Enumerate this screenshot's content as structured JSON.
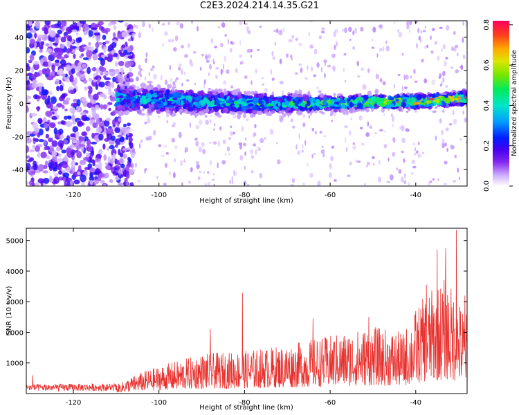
{
  "title": "C2E3.2024.214.14.35.G21",
  "chart_data": [
    {
      "type": "heatmap",
      "title": "C2E3.2024.214.14.35.G21",
      "xlabel": "Height of straight line (km)",
      "ylabel": "Frequency (Hz)",
      "xlim": [
        -131,
        -28
      ],
      "ylim": [
        -50,
        50
      ],
      "x_ticks": [
        "-120",
        "-100",
        "-80",
        "-60",
        "-40"
      ],
      "y_ticks": [
        "-40",
        "-20",
        "0",
        "20",
        "40"
      ],
      "colorbar": {
        "label": "Normalized spectral amplitude",
        "range": [
          0,
          0.82
        ],
        "ticks": [
          "0.0",
          "0.2",
          "0.4",
          "0.6",
          "0.8"
        ],
        "colormap": "rainbow"
      },
      "description_values": {
        "signal_band_frequency_hz": [
          {
            "x": -108,
            "y": 3
          },
          {
            "x": -100,
            "y": 2
          },
          {
            "x": -90,
            "y": 1
          },
          {
            "x": -80,
            "y": 0
          },
          {
            "x": -70,
            "y": 0
          },
          {
            "x": -60,
            "y": 0
          },
          {
            "x": -50,
            "y": 1
          },
          {
            "x": -40,
            "y": 1
          },
          {
            "x": -30,
            "y": 3
          }
        ],
        "band_halfwidth_hz": [
          {
            "x": -108,
            "y": 8
          },
          {
            "x": -90,
            "y": 7
          },
          {
            "x": -70,
            "y": 5
          },
          {
            "x": -50,
            "y": 4
          },
          {
            "x": -30,
            "y": 4
          }
        ],
        "peak_amplitude": [
          {
            "x": -108,
            "y": 0.45
          },
          {
            "x": -90,
            "y": 0.45
          },
          {
            "x": -75,
            "y": 0.55
          },
          {
            "x": -60,
            "y": 0.6
          },
          {
            "x": -50,
            "y": 0.78
          },
          {
            "x": -40,
            "y": 0.8
          },
          {
            "x": -30,
            "y": 0.82
          }
        ],
        "noise_region_x": [
          -131,
          -108
        ]
      },
      "grid": false
    },
    {
      "type": "line",
      "xlabel": "Height of straight line (km)",
      "ylabel": "SNR (10 * v/v)",
      "xlim": [
        -131,
        -28
      ],
      "ylim": [
        0,
        5400
      ],
      "x_ticks": [
        "-120",
        "-100",
        "-80",
        "-60",
        "-40"
      ],
      "y_ticks": [
        "1000",
        "2000",
        "3000",
        "4000",
        "5000"
      ],
      "color": "#e8322f",
      "envelope": [
        {
          "x": -131,
          "y": 250
        },
        {
          "x": -110,
          "y": 280
        },
        {
          "x": -105,
          "y": 650
        },
        {
          "x": -100,
          "y": 900
        },
        {
          "x": -90,
          "y": 1300
        },
        {
          "x": -80,
          "y": 1400
        },
        {
          "x": -70,
          "y": 1600
        },
        {
          "x": -60,
          "y": 1900
        },
        {
          "x": -50,
          "y": 2200
        },
        {
          "x": -43,
          "y": 2000
        },
        {
          "x": -38,
          "y": 3200
        },
        {
          "x": -33,
          "y": 3800
        },
        {
          "x": -28,
          "y": 2600
        }
      ],
      "peaks": [
        {
          "x": -129.5,
          "y": 600
        },
        {
          "x": -88,
          "y": 2100
        },
        {
          "x": -80.5,
          "y": 3300
        },
        {
          "x": -64,
          "y": 2450
        },
        {
          "x": -51,
          "y": 2500
        },
        {
          "x": -40,
          "y": 2700
        },
        {
          "x": -37.5,
          "y": 3550
        },
        {
          "x": -35,
          "y": 4700
        },
        {
          "x": -33,
          "y": 4750
        },
        {
          "x": -30.5,
          "y": 5350
        },
        {
          "x": -28.5,
          "y": 3200
        }
      ],
      "grid": false
    }
  ]
}
